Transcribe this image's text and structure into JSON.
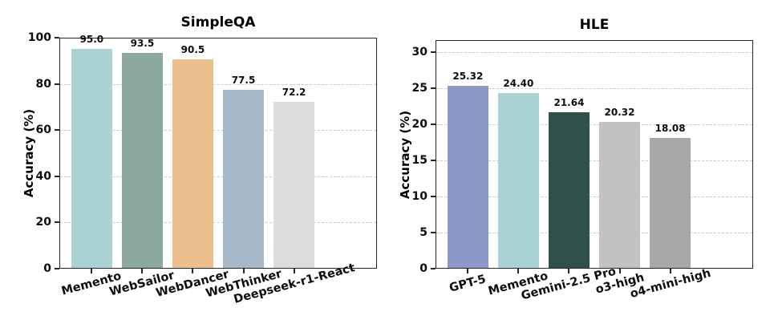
{
  "figure": {
    "background": "#ffffff",
    "text_color": "#0d0d0d",
    "spine_color": "#262626",
    "grid_color": "#c9c9c9",
    "grid_style": "dashed"
  },
  "chart_data": [
    {
      "type": "bar",
      "title": "SimpleQA",
      "xlabel": "",
      "ylabel": "Accuracy (%)",
      "categories": [
        "Memento",
        "WebSailor",
        "WebDancer",
        "WebThinker",
        "Deepseek-r1-React"
      ],
      "values": [
        95.0,
        93.5,
        90.5,
        77.5,
        72.2
      ],
      "value_labels": [
        "95.0",
        "93.5",
        "90.5",
        "77.5",
        "72.2"
      ],
      "bar_colors": [
        "#abd3d6",
        "#8ba99e",
        "#ecbe8d",
        "#a5b9c9",
        "#dcdcdc"
      ],
      "ylim": [
        0,
        100
      ],
      "yticks": [
        0,
        20,
        40,
        60,
        80,
        100
      ],
      "grid": "horizontal-dashed",
      "legend": "none",
      "xtick_rotation_deg": 15
    },
    {
      "type": "bar",
      "title": "HLE",
      "xlabel": "",
      "ylabel": "Accuracy (%)",
      "categories": [
        "GPT-5",
        "Memento",
        "Gemini-2.5 Pro",
        "o3-high",
        "o4-mini-high"
      ],
      "values": [
        25.32,
        24.4,
        21.64,
        20.32,
        18.08
      ],
      "value_labels": [
        "25.32",
        "24.40",
        "21.64",
        "20.32",
        "18.08"
      ],
      "bar_colors": [
        "#8c99c8",
        "#abd3d6",
        "#30504b",
        "#c2c2c2",
        "#a8a8a8"
      ],
      "ylim": [
        0,
        31.7
      ],
      "yticks": [
        0,
        5,
        10,
        15,
        20,
        25,
        30
      ],
      "grid": "horizontal-dashed",
      "legend": "none",
      "xtick_rotation_deg": 15
    }
  ]
}
